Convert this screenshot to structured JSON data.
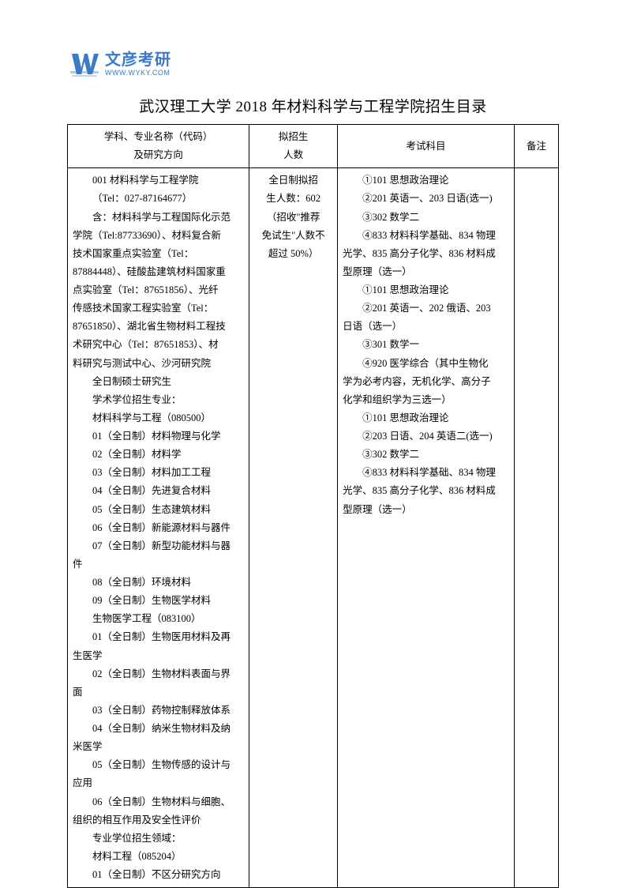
{
  "logo": {
    "cn": "文彦考研",
    "url": "WWW.WYKY.COM",
    "icon_color": "#3a7ac8"
  },
  "title": "武汉理工大学 2018 年材料科学与工程学院招生目录",
  "table": {
    "headers": {
      "c1a": "学科、专业名称（代码）",
      "c1b": "及研究方向",
      "c2a": "拟招生",
      "c2b": "人数",
      "c3": "考试科目",
      "c4": "备注"
    },
    "col1_lines": [
      "001 材料科学与工程学院",
      "（Tel：027-87164677）",
      "含：材料科学与工程国际化示范",
      "学院（Tel:87733690）、材料复合新",
      "技术国家重点实验室（Tel：",
      "87884448）、硅酸盐建筑材料国家重",
      "点实验室（Tel：87651856）、光纤",
      "传感技术国家工程实验室（Tel：",
      "87651850）、湖北省生物材料工程技",
      "术研究中心（Tel：87651853）、材",
      "料研究与测试中心、沙河研究院",
      "全日制硕士研究生",
      "学术学位招生专业：",
      "材料科学与工程（080500）",
      "01（全日制）材料物理与化学",
      "02（全日制）材料学",
      "03（全日制）材料加工工程",
      "04（全日制）先进复合材料",
      "05（全日制）生态建筑材料",
      "06（全日制）新能源材料与器件",
      "07（全日制）新型功能材料与器",
      "件",
      "08（全日制）环境材料",
      "09（全日制）生物医学材料",
      "生物医学工程（083100）",
      "01（全日制）生物医用材料及再",
      "生医学",
      "02（全日制）生物材料表面与界",
      "面",
      "03（全日制）药物控制释放体系",
      "04（全日制）纳米生物材料及纳",
      "米医学",
      "05（全日制）生物传感的设计与",
      "应用",
      "06（全日制）生物材料与细胞、",
      "组织的相互作用及安全性评价",
      "专业学位招生领域：",
      "材料工程（085204）",
      "01（全日制）不区分研究方向"
    ],
    "col1_indent_flags": [
      1,
      1,
      1,
      0,
      0,
      0,
      0,
      0,
      0,
      0,
      0,
      1,
      1,
      1,
      1,
      1,
      1,
      1,
      1,
      1,
      1,
      0,
      1,
      1,
      1,
      1,
      0,
      1,
      0,
      1,
      1,
      0,
      1,
      0,
      1,
      0,
      1,
      1,
      1
    ],
    "col2_lines": [
      "全日制拟招",
      "生人数：602",
      "（招收\"推荐",
      "免试生\"人数不",
      "超过 50%）"
    ],
    "col3_lines": [
      "①101 思想政治理论",
      "②201 英语一、203 日语(选一)",
      "③302 数学二",
      "④833 材料科学基础、834 物理",
      "光学、835 高分子化学、836 材料成",
      "型原理（选一）",
      "①101 思想政治理论",
      "②201 英语一、202 俄语、203",
      "日语（选一）",
      "③301 数学一",
      "④920 医学综合（其中生物化",
      "学为必考内容，无机化学、高分子",
      "化学和组织学为三选一）",
      "①101 思想政治理论",
      "②203 日语、204 英语二(选一)",
      "③302 数学二",
      "④833 材料科学基础、834 物理",
      "光学、835 高分子化学、836 材料成",
      "型原理（选一）"
    ],
    "col3_indent_flags": [
      1,
      1,
      1,
      1,
      0,
      0,
      1,
      1,
      0,
      1,
      1,
      0,
      0,
      1,
      1,
      1,
      1,
      0,
      0
    ]
  }
}
